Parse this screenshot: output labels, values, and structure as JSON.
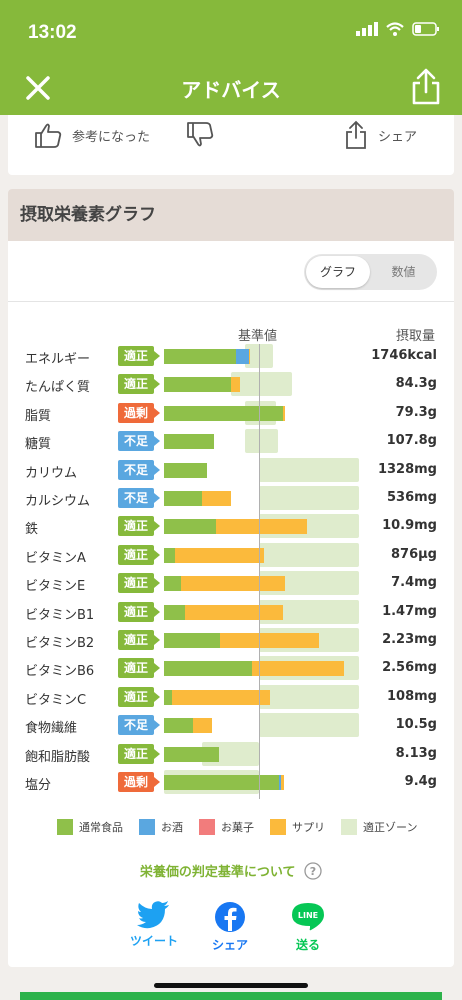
{
  "status_bar": {
    "time": "13:02"
  },
  "nav": {
    "title": "アドバイス"
  },
  "actions": {
    "helpful": "参考になった",
    "share": "シェア"
  },
  "graph_section": {
    "title": "摂取栄養素グラフ",
    "toggle_graph": "グラフ",
    "toggle_values": "数値",
    "col_standard": "基準値",
    "col_amount": "摂取量"
  },
  "colors": {
    "ordinary_food": "#8fc04a",
    "alcohol": "#5aa7e0",
    "sweets": "#f27c7c",
    "supplement": "#fbba3c",
    "zone": "#dfeccd",
    "adequate": "#86b93b",
    "excess": "#ef6a3a",
    "deficient": "#5aa7e0"
  },
  "rows": [
    {
      "name": "エネルギー",
      "status": "適正",
      "amount": "1746kcal"
    },
    {
      "name": "たんぱく質",
      "status": "適正",
      "amount": "84.3g"
    },
    {
      "name": "脂質",
      "status": "過剰",
      "amount": "79.3g"
    },
    {
      "name": "糖質",
      "status": "不足",
      "amount": "107.8g"
    },
    {
      "name": "カリウム",
      "status": "不足",
      "amount": "1328mg"
    },
    {
      "name": "カルシウム",
      "status": "不足",
      "amount": "536mg"
    },
    {
      "name": "鉄",
      "status": "適正",
      "amount": "10.9mg"
    },
    {
      "name": "ビタミンA",
      "status": "適正",
      "amount": "876μg"
    },
    {
      "name": "ビタミンE",
      "status": "適正",
      "amount": "7.4mg"
    },
    {
      "name": "ビタミンB1",
      "status": "適正",
      "amount": "1.47mg"
    },
    {
      "name": "ビタミンB2",
      "status": "適正",
      "amount": "2.23mg"
    },
    {
      "name": "ビタミンB6",
      "status": "適正",
      "amount": "2.56mg"
    },
    {
      "name": "ビタミンC",
      "status": "適正",
      "amount": "108mg"
    },
    {
      "name": "食物繊維",
      "status": "不足",
      "amount": "10.5g"
    },
    {
      "name": "飽和脂肪酸",
      "status": "適正",
      "amount": "8.13g"
    },
    {
      "name": "塩分",
      "status": "過剰",
      "amount": "9.4g"
    }
  ],
  "legend": {
    "ordinary_food": "通常食品",
    "alcohol": "お酒",
    "sweets": "お菓子",
    "supplement": "サプリ",
    "zone": "適正ゾーン"
  },
  "criteria_link": "栄養価の判定基準について",
  "social": {
    "tweet": "ツイート",
    "facebook": "シェア",
    "line": "送る",
    "line_logo": "LINE"
  },
  "chart_data": {
    "type": "bar",
    "title": "摂取栄養素グラフ",
    "categories": [
      "エネルギー",
      "たんぱく質",
      "脂質",
      "糖質",
      "カリウム",
      "カルシウム",
      "鉄",
      "ビタミンA",
      "ビタミンE",
      "ビタミンB1",
      "ビタミンB2",
      "ビタミンB6",
      "ビタミンC",
      "食物繊維",
      "飽和脂肪酸",
      "塩分"
    ],
    "unit": "percent of standard (基準値 = 100)",
    "series": [
      {
        "name": "通常食品",
        "values": [
          76,
          70,
          125,
          53,
          45,
          40,
          55,
          12,
          18,
          22,
          59,
          93,
          8,
          31,
          58,
          121
        ]
      },
      {
        "name": "お酒",
        "values": [
          13,
          0,
          0,
          0,
          0,
          0,
          0,
          0,
          0,
          0,
          0,
          0,
          0,
          0,
          0,
          2
        ]
      },
      {
        "name": "お菓子",
        "values": [
          0,
          0,
          0,
          0,
          0,
          0,
          0,
          0,
          0,
          0,
          0,
          0,
          0,
          0,
          0,
          0
        ]
      },
      {
        "name": "サプリ",
        "values": [
          2,
          10,
          2,
          0,
          0,
          31,
          95,
          93,
          109,
          103,
          104,
          97,
          104,
          20,
          0,
          3
        ]
      }
    ],
    "zones": [
      [
        85,
        115
      ],
      [
        70,
        135
      ],
      [
        85,
        118
      ],
      [
        85,
        120
      ],
      [
        100,
        205
      ],
      [
        100,
        205
      ],
      [
        100,
        205
      ],
      [
        100,
        205
      ],
      [
        100,
        205
      ],
      [
        100,
        205
      ],
      [
        100,
        205
      ],
      [
        100,
        205
      ],
      [
        100,
        205
      ],
      [
        100,
        205
      ],
      [
        40,
        100
      ],
      [
        0,
        100
      ]
    ]
  }
}
